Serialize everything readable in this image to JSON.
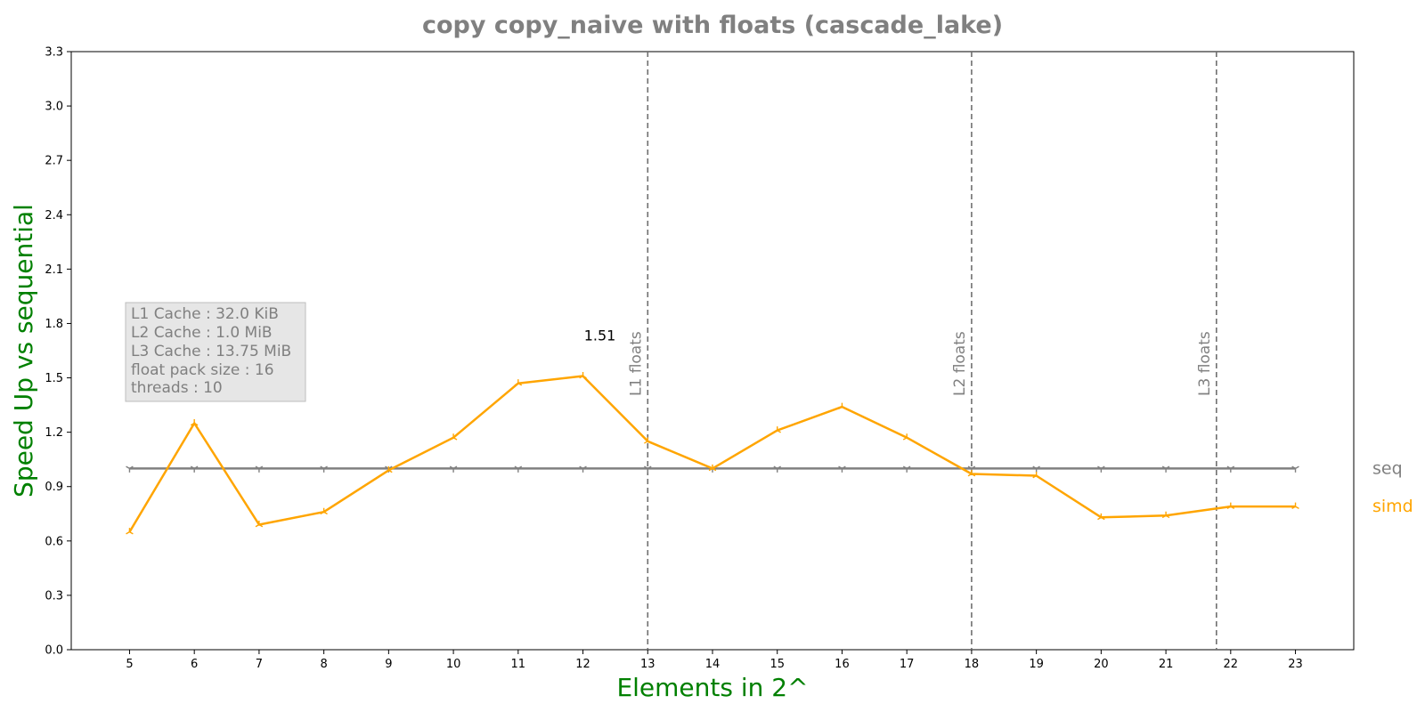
{
  "chart_data": {
    "type": "line",
    "title": "copy copy_naive with floats  (cascade_lake)",
    "xlabel": "Elements in 2^",
    "ylabel": "Speed Up vs sequential",
    "x": [
      5,
      6,
      7,
      8,
      9,
      10,
      11,
      12,
      13,
      14,
      15,
      16,
      17,
      18,
      19,
      20,
      21,
      22,
      23
    ],
    "xticks": [
      "5",
      "6",
      "7",
      "8",
      "9",
      "10",
      "11",
      "12",
      "13",
      "14",
      "15",
      "16",
      "17",
      "18",
      "19",
      "20",
      "21",
      "22",
      "23"
    ],
    "xlim": [
      4.1,
      23.9
    ],
    "ylim": [
      0.0,
      3.3
    ],
    "yticks": [
      "0.0",
      "0.3",
      "0.6",
      "0.9",
      "1.2",
      "1.5",
      "1.8",
      "2.1",
      "2.4",
      "2.7",
      "3.0",
      "3.3"
    ],
    "grid": false,
    "series": [
      {
        "name": "seq",
        "color": "#808080",
        "marker": "tri-down",
        "values": [
          1.0,
          1.0,
          1.0,
          1.0,
          1.0,
          1.0,
          1.0,
          1.0,
          1.0,
          1.0,
          1.0,
          1.0,
          1.0,
          1.0,
          1.0,
          1.0,
          1.0,
          1.0,
          1.0
        ]
      },
      {
        "name": "simd",
        "color": "#ffa500",
        "marker": "tri-up",
        "values": [
          0.65,
          1.25,
          0.69,
          0.76,
          0.99,
          1.17,
          1.47,
          1.51,
          1.15,
          1.0,
          1.21,
          1.34,
          1.17,
          0.97,
          0.96,
          0.73,
          0.74,
          0.79,
          0.79
        ]
      }
    ],
    "legend": {
      "placement": "right-of-plot",
      "style": "series-name-at-line-end"
    },
    "vlines": [
      {
        "x": 13.0,
        "label": "L1 floats",
        "color": "#707070",
        "style": "dashed"
      },
      {
        "x": 18.0,
        "label": "L2 floats",
        "color": "#707070",
        "style": "dashed"
      },
      {
        "x": 21.78,
        "label": "L3 floats",
        "color": "#707070",
        "style": "dashed"
      }
    ],
    "annotations": [
      {
        "x": 12,
        "y": 1.51,
        "text": "1.51"
      }
    ],
    "info_box": [
      "L1 Cache : 32.0 KiB",
      "L2 Cache : 1.0 MiB",
      "L3 Cache : 13.75 MiB",
      "float pack size : 16",
      "threads : 10"
    ],
    "colors": {
      "title": "#808080",
      "axis_label": "#008000",
      "info_text": "#808080",
      "info_box_fill": "#e6e6e6"
    }
  }
}
